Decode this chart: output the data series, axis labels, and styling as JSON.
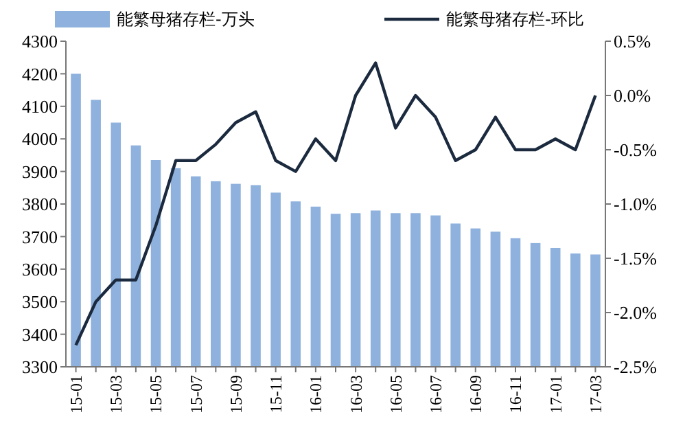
{
  "chart_data": {
    "type": "bar",
    "categories": [
      "15-01",
      null,
      "15-03",
      null,
      "15-05",
      null,
      "15-07",
      null,
      "15-09",
      null,
      "15-11",
      null,
      "16-01",
      null,
      "16-03",
      null,
      "16-05",
      null,
      "16-07",
      null,
      "16-09",
      null,
      "16-11",
      null,
      "17-01",
      null,
      "17-03"
    ],
    "series": [
      {
        "name": "能繁母猪存栏-万头",
        "color": "#8eb1dd",
        "values": [
          4200,
          4120,
          4050,
          3980,
          3935,
          3910,
          3885,
          3870,
          3862,
          3858,
          3835,
          3808,
          3792,
          3770,
          3772,
          3780,
          3772,
          3772,
          3765,
          3740,
          3725,
          3715,
          3695,
          3680,
          3665,
          3648,
          3645
        ]
      },
      {
        "name": "能繁母猪存栏-环比",
        "type": "line",
        "axis": "y2",
        "color": "#1b2a3e",
        "values": [
          -2.3,
          -1.9,
          -1.7,
          -1.7,
          -1.2,
          -0.6,
          -0.6,
          -0.45,
          -0.25,
          -0.15,
          -0.6,
          -0.7,
          -0.4,
          -0.6,
          0.0,
          0.3,
          -0.3,
          0.0,
          -0.2,
          -0.6,
          -0.5,
          -0.2,
          -0.5,
          -0.5,
          -0.4,
          -0.5,
          0.0
        ]
      }
    ],
    "ylim": [
      3300,
      4300
    ],
    "yticks": [
      3300,
      3400,
      3500,
      3600,
      3700,
      3800,
      3900,
      4000,
      4100,
      4200,
      4300
    ],
    "y2lim": [
      -2.5,
      0.5
    ],
    "y2ticks": [
      {
        "value": -2.5,
        "label": "-2.5%"
      },
      {
        "value": -2.0,
        "label": "-2.0%"
      },
      {
        "value": -1.5,
        "label": "-1.5%"
      },
      {
        "value": -1.0,
        "label": "-1.0%"
      },
      {
        "value": -0.5,
        "label": "-0.5%"
      },
      {
        "value": 0.0,
        "label": "0.0%"
      },
      {
        "value": 0.5,
        "label": "0.5%"
      }
    ],
    "legend": "top",
    "grid": false,
    "marker": "none",
    "line_style": "solid"
  }
}
